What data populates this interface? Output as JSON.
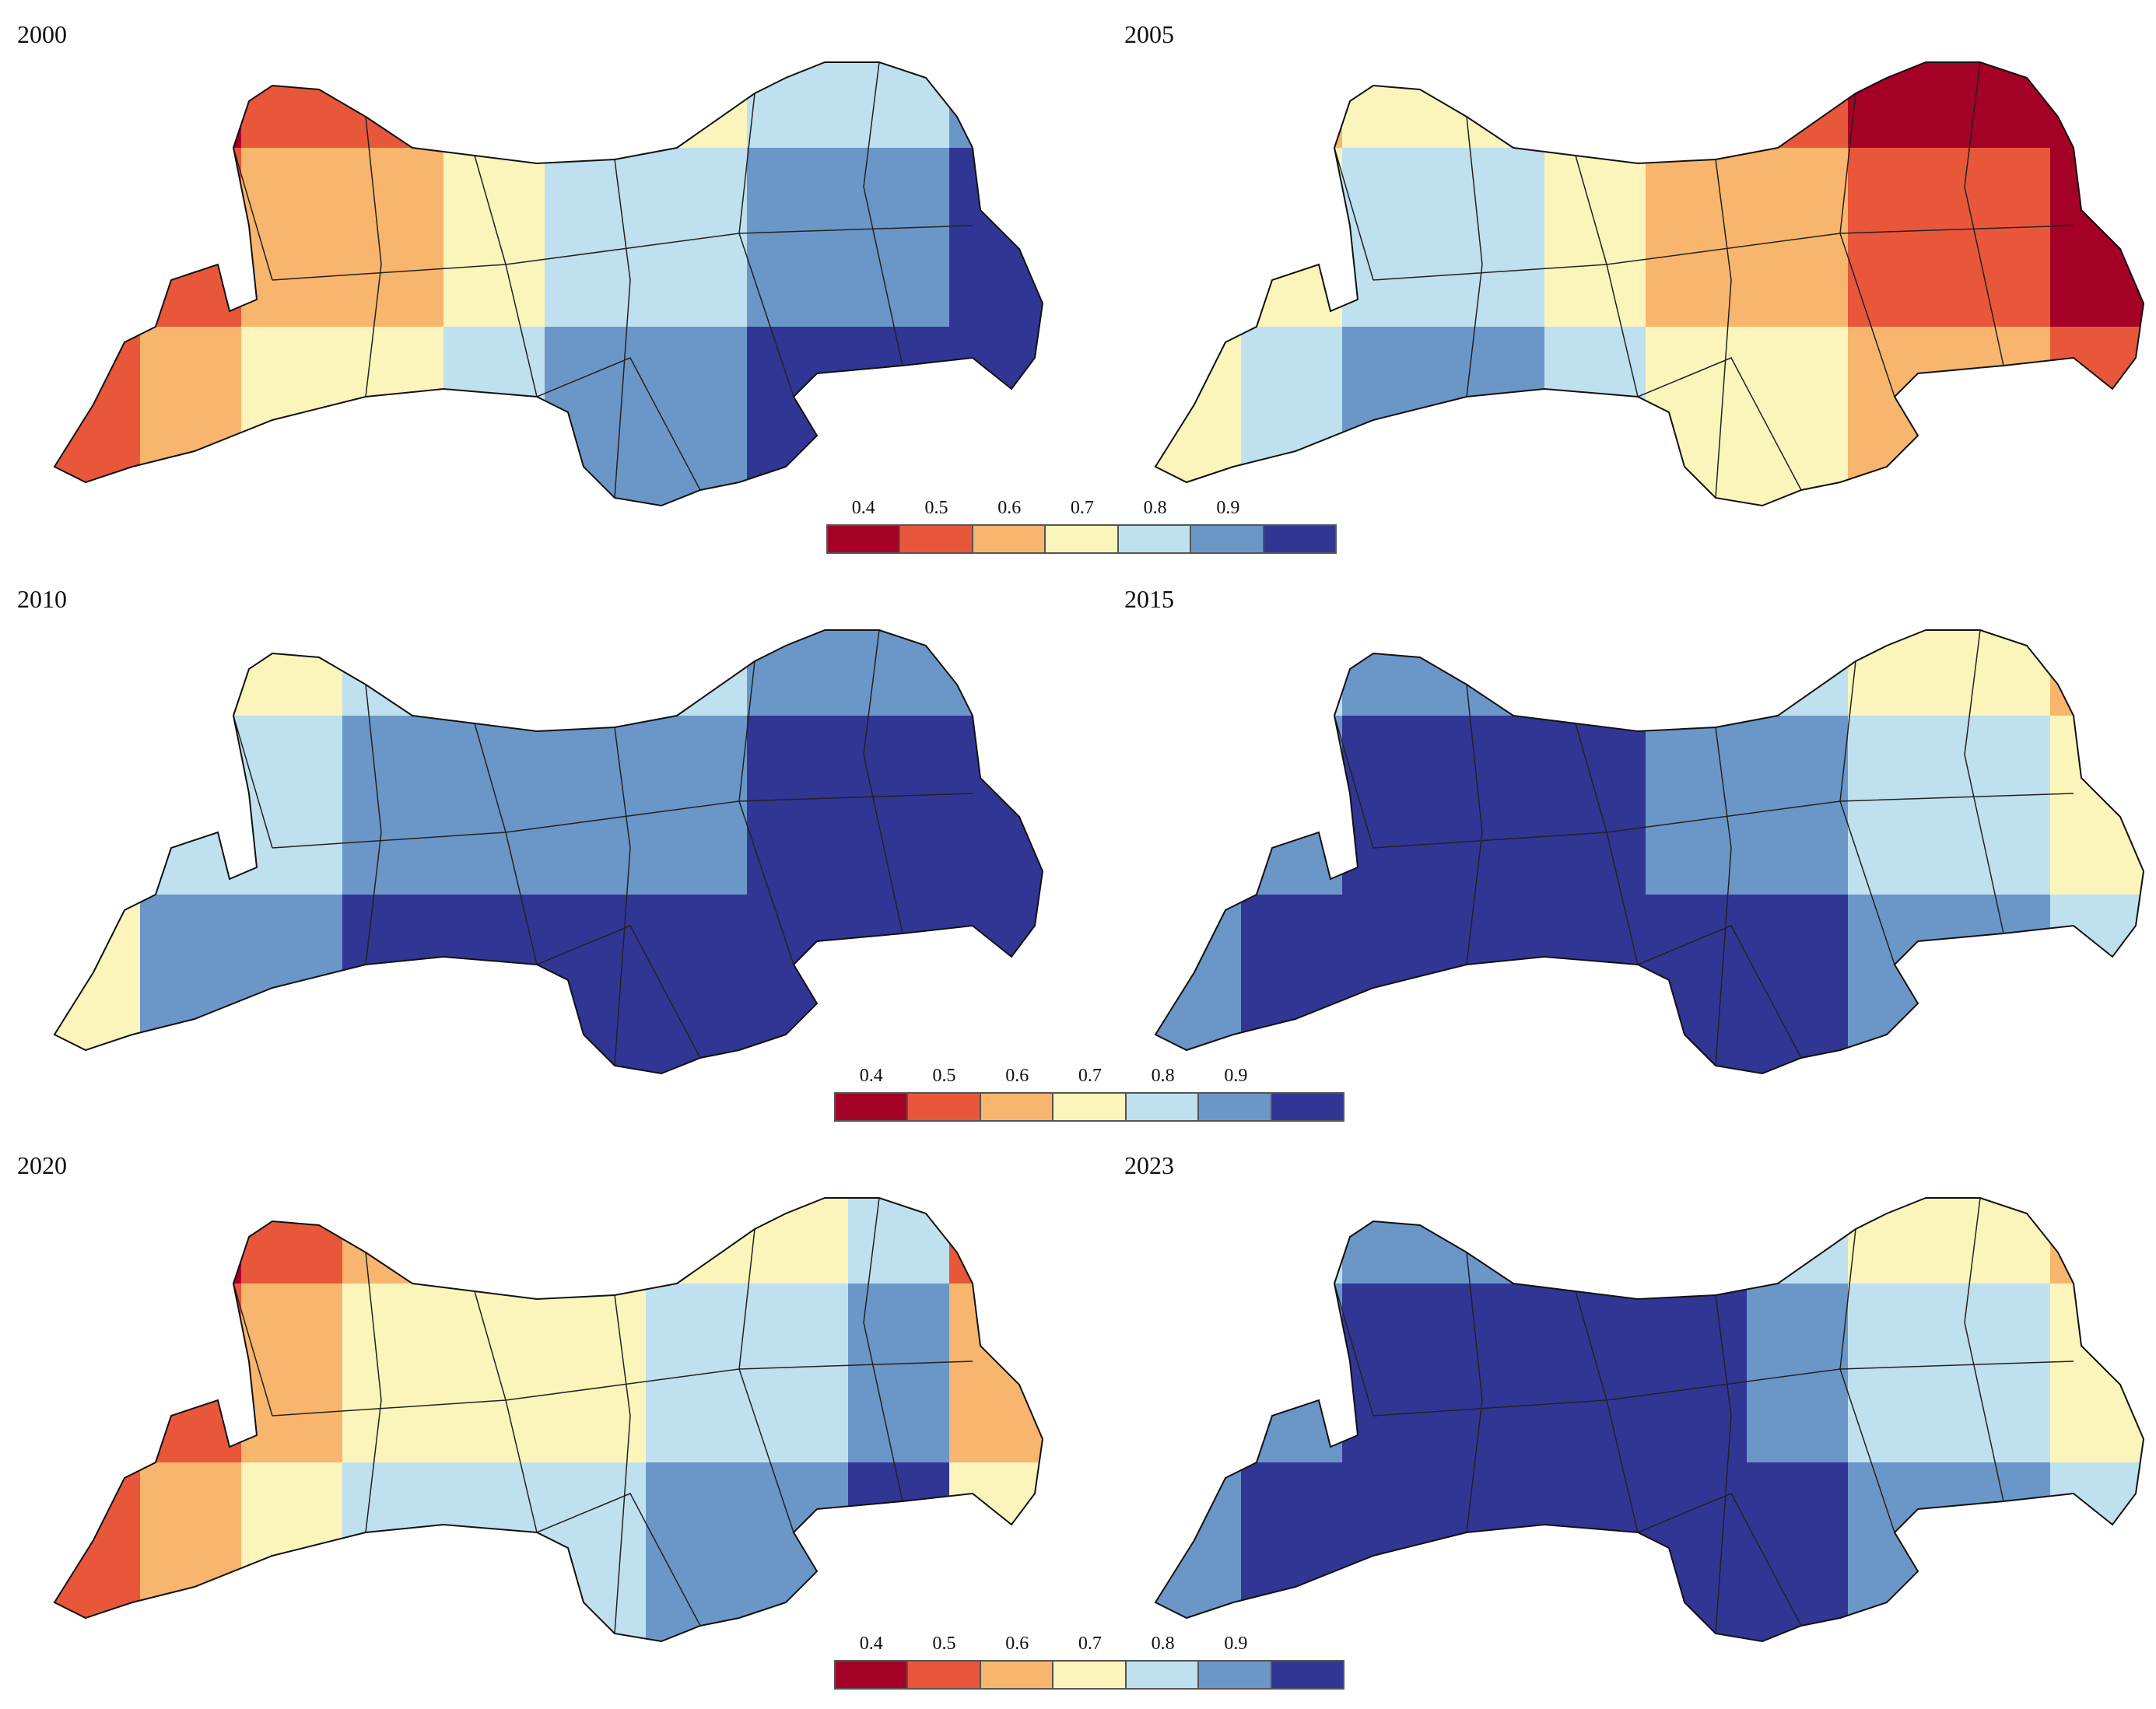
{
  "panels": [
    {
      "year": "2000",
      "palette": [
        "#a50026",
        "#e8573a",
        "#f8b56d",
        "#fbf5bb",
        "#bfe0ee",
        "#6b97c8",
        "#313695"
      ],
      "profile": [
        0,
        1,
        2,
        2,
        3,
        4,
        4,
        5,
        5,
        6
      ]
    },
    {
      "year": "2005",
      "palette": [
        "#a50026",
        "#e8573a",
        "#f8b56d",
        "#fbf5bb",
        "#bfe0ee",
        "#6b97c8",
        "#313695"
      ],
      "profile": [
        2,
        3,
        4,
        4,
        3,
        2,
        2,
        1,
        1,
        0
      ]
    },
    {
      "year": "2010",
      "palette": [
        "#a50026",
        "#e8573a",
        "#f8b56d",
        "#fbf5bb",
        "#bfe0ee",
        "#6b97c8",
        "#313695"
      ],
      "profile": [
        2,
        4,
        4,
        5,
        5,
        5,
        5,
        6,
        6,
        6
      ]
    },
    {
      "year": "2015",
      "palette": [
        "#a50026",
        "#e8573a",
        "#f8b56d",
        "#fbf5bb",
        "#bfe0ee",
        "#6b97c8",
        "#313695"
      ],
      "profile": [
        4,
        5,
        6,
        6,
        6,
        5,
        5,
        4,
        4,
        3
      ]
    },
    {
      "year": "2020",
      "palette": [
        "#a50026",
        "#e8573a",
        "#f8b56d",
        "#fbf5bb",
        "#bfe0ee",
        "#6b97c8",
        "#313695"
      ],
      "profile": [
        0,
        1,
        2,
        3,
        3,
        3,
        4,
        4,
        5,
        2
      ]
    },
    {
      "year": "2023",
      "palette": [
        "#a50026",
        "#e8573a",
        "#f8b56d",
        "#fbf5bb",
        "#bfe0ee",
        "#6b97c8",
        "#313695"
      ],
      "profile": [
        4,
        5,
        6,
        6,
        6,
        6,
        5,
        4,
        4,
        3
      ]
    }
  ],
  "legend": {
    "ticks": [
      "0.4",
      "0.5",
      "0.6",
      "0.7",
      "0.8",
      "0.9"
    ],
    "colors": [
      "#a50026",
      "#e8573a",
      "#f8b56d",
      "#fbf5bb",
      "#bfe0ee",
      "#6b97c8",
      "#313695"
    ]
  }
}
